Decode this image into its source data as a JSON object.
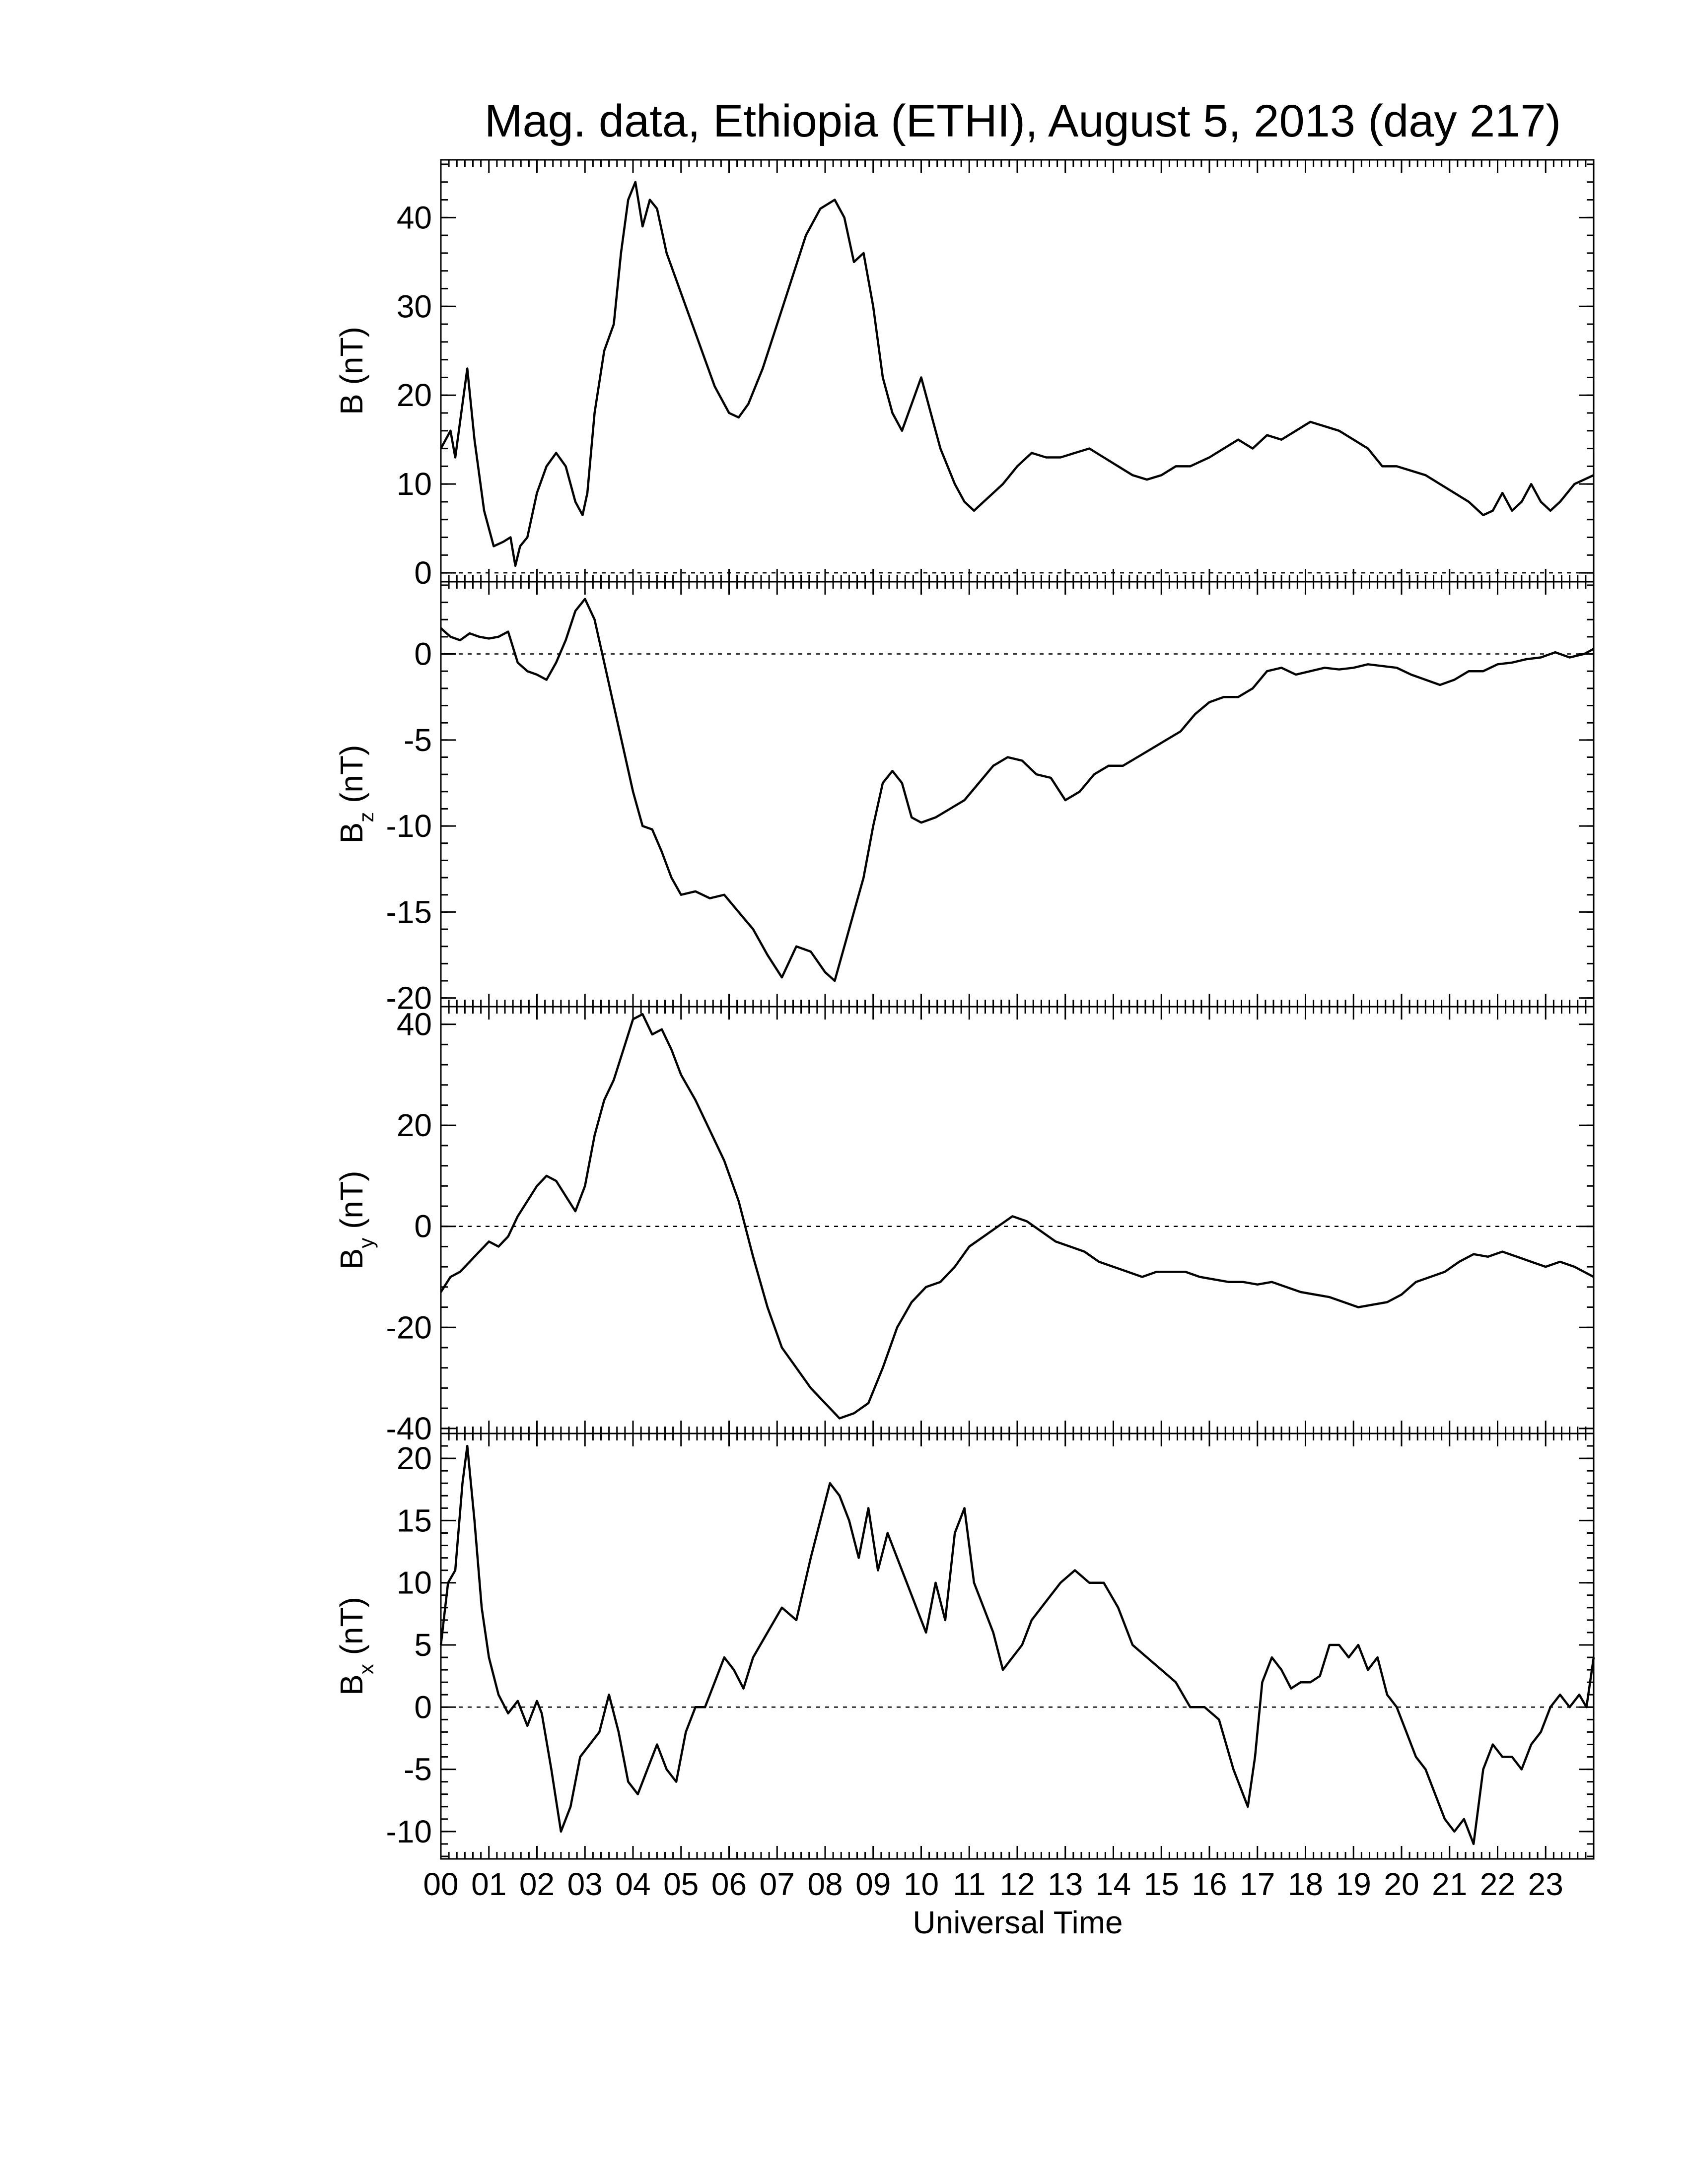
{
  "chart_data": {
    "type": "line",
    "title": "Mag. data, Ethiopia (ETHI), August 5, 2013 (day 217)",
    "xlabel": "Universal Time",
    "xlim": [
      0,
      24
    ],
    "x_tick_labels": [
      "00",
      "01",
      "02",
      "03",
      "04",
      "05",
      "06",
      "07",
      "08",
      "09",
      "10",
      "11",
      "12",
      "13",
      "14",
      "15",
      "16",
      "17",
      "18",
      "19",
      "20",
      "21",
      "22",
      "23"
    ],
    "panels": [
      {
        "id": "B",
        "ylabel_main": "B",
        "ylabel_sub": "",
        "ylabel_unit": "(nT)",
        "ylim": [
          -1,
          46.5
        ],
        "yticks": [
          0,
          10,
          20,
          30,
          40
        ],
        "zero_line": true,
        "x": [
          0,
          0.2,
          0.3,
          0.45,
          0.55,
          0.7,
          0.9,
          1.1,
          1.3,
          1.45,
          1.55,
          1.65,
          1.8,
          2.0,
          2.2,
          2.4,
          2.6,
          2.8,
          2.95,
          3.05,
          3.2,
          3.4,
          3.6,
          3.75,
          3.9,
          4.05,
          4.2,
          4.35,
          4.5,
          4.7,
          4.9,
          5.1,
          5.3,
          5.5,
          5.7,
          6.0,
          6.2,
          6.4,
          6.7,
          7.0,
          7.3,
          7.6,
          7.9,
          8.2,
          8.4,
          8.6,
          8.8,
          9.0,
          9.2,
          9.4,
          9.6,
          9.8,
          10.0,
          10.2,
          10.4,
          10.55,
          10.7,
          10.9,
          11.1,
          11.3,
          11.5,
          11.7,
          12.0,
          12.3,
          12.6,
          12.9,
          13.2,
          13.5,
          13.8,
          14.1,
          14.4,
          14.7,
          15.0,
          15.3,
          15.6,
          16.0,
          16.3,
          16.6,
          16.9,
          17.2,
          17.5,
          17.8,
          18.1,
          18.4,
          18.7,
          19.0,
          19.3,
          19.6,
          19.9,
          20.2,
          20.5,
          20.8,
          21.1,
          21.4,
          21.7,
          21.9,
          22.1,
          22.3,
          22.5,
          22.7,
          22.9,
          23.1,
          23.3,
          23.6,
          24.0
        ],
        "y": [
          14,
          16,
          13,
          19,
          23,
          15,
          7,
          3,
          3.5,
          4,
          0.8,
          3,
          4,
          9,
          12,
          13.5,
          12,
          8,
          6.5,
          9,
          18,
          25,
          28,
          36,
          42,
          44,
          39,
          42,
          41,
          36,
          33,
          30,
          27,
          24,
          21,
          18,
          17.5,
          19,
          23,
          28,
          33,
          38,
          41,
          42,
          40,
          35,
          36,
          30,
          22,
          18,
          16,
          19,
          22,
          18,
          14,
          12,
          10,
          8,
          7,
          8,
          9,
          10,
          12,
          13.5,
          13,
          13,
          13.5,
          14,
          13,
          12,
          11,
          10.5,
          11,
          12,
          12,
          13,
          14,
          15,
          14,
          15.5,
          15,
          16,
          17,
          16.5,
          16,
          15,
          14,
          12,
          12,
          11.5,
          11,
          10,
          9,
          8,
          6.5,
          7,
          9,
          7,
          8,
          10,
          8,
          7,
          8,
          10,
          11
        ]
      },
      {
        "id": "Bz",
        "ylabel_main": "B",
        "ylabel_sub": "z",
        "ylabel_unit": "(nT)",
        "ylim": [
          -20.5,
          4.2
        ],
        "yticks": [
          -20,
          -15,
          -10,
          -5,
          0
        ],
        "zero_line": true,
        "x": [
          0,
          0.2,
          0.4,
          0.6,
          0.8,
          1.0,
          1.2,
          1.4,
          1.6,
          1.8,
          2.0,
          2.2,
          2.4,
          2.6,
          2.8,
          3.0,
          3.2,
          3.4,
          3.6,
          3.8,
          4.0,
          4.2,
          4.4,
          4.6,
          4.8,
          5.0,
          5.3,
          5.6,
          5.9,
          6.2,
          6.5,
          6.8,
          7.1,
          7.4,
          7.7,
          8.0,
          8.2,
          8.4,
          8.6,
          8.8,
          9.0,
          9.2,
          9.4,
          9.6,
          9.8,
          10.0,
          10.3,
          10.6,
          10.9,
          11.2,
          11.5,
          11.8,
          12.1,
          12.4,
          12.7,
          13.0,
          13.3,
          13.6,
          13.9,
          14.2,
          14.5,
          14.8,
          15.1,
          15.4,
          15.7,
          16.0,
          16.3,
          16.6,
          16.9,
          17.2,
          17.5,
          17.8,
          18.1,
          18.4,
          18.7,
          19.0,
          19.3,
          19.6,
          19.9,
          20.2,
          20.5,
          20.8,
          21.1,
          21.4,
          21.7,
          22.0,
          22.3,
          22.6,
          22.9,
          23.2,
          23.5,
          23.8,
          24.0
        ],
        "y": [
          1.5,
          1,
          0.8,
          1.2,
          1,
          0.9,
          1,
          1.3,
          -0.5,
          -1,
          -1.2,
          -1.5,
          -0.5,
          0.8,
          2.5,
          3.2,
          2,
          -0.5,
          -3,
          -5.5,
          -8,
          -10,
          -10.2,
          -11.5,
          -13,
          -14,
          -13.8,
          -14.2,
          -14,
          -15,
          -16,
          -17.5,
          -18.8,
          -17,
          -17.3,
          -18.5,
          -19,
          -17,
          -15,
          -13,
          -10,
          -7.5,
          -6.8,
          -7.5,
          -9.5,
          -9.8,
          -9.5,
          -9,
          -8.5,
          -7.5,
          -6.5,
          -6,
          -6.2,
          -7,
          -7.2,
          -8.5,
          -8,
          -7,
          -6.5,
          -6.5,
          -6,
          -5.5,
          -5,
          -4.5,
          -3.5,
          -2.8,
          -2.5,
          -2.5,
          -2,
          -1,
          -0.8,
          -1.2,
          -1,
          -0.8,
          -0.9,
          -0.8,
          -0.6,
          -0.7,
          -0.8,
          -1.2,
          -1.5,
          -1.8,
          -1.5,
          -1,
          -1,
          -0.6,
          -0.5,
          -0.3,
          -0.2,
          0.1,
          -0.2,
          0,
          0.3
        ]
      },
      {
        "id": "By",
        "ylabel_main": "B",
        "ylabel_sub": "y",
        "ylabel_unit": "(nT)",
        "ylim": [
          -41,
          43.5
        ],
        "yticks": [
          -40,
          -20,
          0,
          20,
          40
        ],
        "zero_line": true,
        "x": [
          0,
          0.2,
          0.4,
          0.6,
          0.8,
          1.0,
          1.2,
          1.4,
          1.6,
          1.8,
          2.0,
          2.2,
          2.4,
          2.6,
          2.8,
          3.0,
          3.2,
          3.4,
          3.6,
          3.8,
          4.0,
          4.2,
          4.4,
          4.6,
          4.8,
          5.0,
          5.3,
          5.6,
          5.9,
          6.2,
          6.5,
          6.8,
          7.1,
          7.4,
          7.7,
          8.0,
          8.3,
          8.6,
          8.9,
          9.2,
          9.5,
          9.8,
          10.1,
          10.4,
          10.7,
          11.0,
          11.3,
          11.6,
          11.9,
          12.2,
          12.5,
          12.8,
          13.1,
          13.4,
          13.7,
          14.0,
          14.3,
          14.6,
          14.9,
          15.2,
          15.5,
          15.8,
          16.1,
          16.4,
          16.7,
          17.0,
          17.3,
          17.6,
          17.9,
          18.2,
          18.5,
          18.8,
          19.1,
          19.4,
          19.7,
          20.0,
          20.3,
          20.6,
          20.9,
          21.2,
          21.5,
          21.8,
          22.1,
          22.4,
          22.7,
          23.0,
          23.3,
          23.6,
          24.0
        ],
        "y": [
          -13,
          -10,
          -9,
          -7,
          -5,
          -3,
          -4,
          -2,
          2,
          5,
          8,
          10,
          9,
          6,
          3,
          8,
          18,
          25,
          29,
          35,
          41,
          42,
          38,
          39,
          35,
          30,
          25,
          19,
          13,
          5,
          -6,
          -16,
          -24,
          -28,
          -32,
          -35,
          -38,
          -37,
          -35,
          -28,
          -20,
          -15,
          -12,
          -11,
          -8,
          -4,
          -2,
          0,
          2,
          1,
          -1,
          -3,
          -4,
          -5,
          -7,
          -8,
          -9,
          -10,
          -9,
          -9,
          -9,
          -10,
          -10.5,
          -11,
          -11,
          -11.5,
          -11,
          -12,
          -13,
          -13.5,
          -14,
          -15,
          -16,
          -15.5,
          -15,
          -13.5,
          -11,
          -10,
          -9,
          -7,
          -5.5,
          -6,
          -5,
          -6,
          -7,
          -8,
          -7,
          -8,
          -10
        ]
      },
      {
        "id": "Bx",
        "ylabel_main": "B",
        "ylabel_sub": "x",
        "ylabel_unit": "(nT)",
        "ylim": [
          -12.2,
          22
        ],
        "yticks": [
          -10,
          -5,
          0,
          5,
          10,
          15,
          20
        ],
        "zero_line": true,
        "x": [
          0,
          0.15,
          0.3,
          0.45,
          0.55,
          0.7,
          0.85,
          1.0,
          1.2,
          1.4,
          1.6,
          1.8,
          2.0,
          2.1,
          2.3,
          2.5,
          2.7,
          2.9,
          3.1,
          3.3,
          3.5,
          3.7,
          3.9,
          4.1,
          4.3,
          4.5,
          4.7,
          4.9,
          5.1,
          5.3,
          5.5,
          5.7,
          5.9,
          6.1,
          6.3,
          6.5,
          6.8,
          7.1,
          7.4,
          7.7,
          7.9,
          8.1,
          8.3,
          8.5,
          8.7,
          8.9,
          9.1,
          9.3,
          9.5,
          9.7,
          9.9,
          10.1,
          10.3,
          10.5,
          10.7,
          10.9,
          11.1,
          11.3,
          11.5,
          11.7,
          11.9,
          12.1,
          12.3,
          12.5,
          12.7,
          12.9,
          13.2,
          13.5,
          13.8,
          14.1,
          14.4,
          14.7,
          15.0,
          15.3,
          15.6,
          15.9,
          16.2,
          16.5,
          16.8,
          16.95,
          17.1,
          17.3,
          17.5,
          17.7,
          17.9,
          18.1,
          18.3,
          18.5,
          18.7,
          18.9,
          19.1,
          19.3,
          19.5,
          19.7,
          19.9,
          20.1,
          20.3,
          20.5,
          20.7,
          20.9,
          21.1,
          21.3,
          21.5,
          21.7,
          21.9,
          22.1,
          22.3,
          22.5,
          22.7,
          22.9,
          23.1,
          23.3,
          23.5,
          23.7,
          23.85,
          24.0
        ],
        "y": [
          5,
          10,
          11,
          18,
          21,
          15,
          8,
          4,
          1,
          -0.5,
          0.5,
          -1.5,
          0.5,
          -0.5,
          -5,
          -10,
          -8,
          -4,
          -3,
          -2,
          1,
          -2,
          -6,
          -7,
          -5,
          -3,
          -5,
          -6,
          -2,
          0,
          0,
          2,
          4,
          3,
          1.5,
          4,
          6,
          8,
          7,
          12,
          15,
          18,
          17,
          15,
          12,
          16,
          11,
          14,
          12,
          10,
          8,
          6,
          10,
          7,
          14,
          16,
          10,
          8,
          6,
          3,
          4,
          5,
          7,
          8,
          9,
          10,
          11,
          10,
          10,
          8,
          5,
          4,
          3,
          2,
          0,
          0,
          -1,
          -5,
          -8,
          -4,
          2,
          4,
          3,
          1.5,
          2,
          2,
          2.5,
          5,
          5,
          4,
          5,
          3,
          4,
          1,
          0,
          -2,
          -4,
          -5,
          -7,
          -9,
          -10,
          -9,
          -11,
          -5,
          -3,
          -4,
          -4,
          -5,
          -3,
          -2,
          0,
          1,
          0,
          1,
          0,
          4
        ]
      }
    ]
  }
}
